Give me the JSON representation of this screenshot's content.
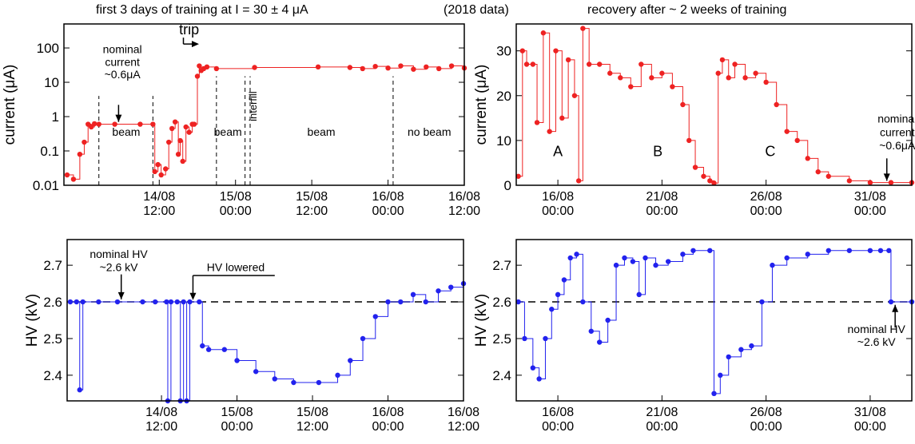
{
  "header": {
    "left_title": "first 3 days of training at I = 30 ± 4 μA",
    "year_note": "(2018 data)",
    "right_title": "recovery after ~ 2 weeks of training"
  },
  "chart_data": [
    {
      "id": "tl",
      "type": "scatter",
      "ylabel": "current  (μA)",
      "yscale": "log",
      "ylim": [
        0.01,
        500
      ],
      "y_ticks": [
        "0.01",
        "0.1",
        "1",
        "10",
        "100"
      ],
      "xlim": [
        0,
        63
      ],
      "x_ticks": [
        {
          "x": 15,
          "l1": "14/08",
          "l2": "12:00"
        },
        {
          "x": 27,
          "l1": "15/08",
          "l2": "00:00"
        },
        {
          "x": 39,
          "l1": "15/08",
          "l2": "12:00"
        },
        {
          "x": 51,
          "l1": "16/08",
          "l2": "00:00"
        },
        {
          "x": 63,
          "l1": "16/08",
          "l2": "12:00"
        }
      ],
      "color": "#ee2222",
      "series": [
        {
          "values": [
            [
              0.5,
              0.02
            ],
            [
              1.5,
              0.015
            ],
            [
              2.5,
              0.08
            ],
            [
              3.2,
              0.18
            ],
            [
              3.8,
              0.6
            ],
            [
              4.3,
              0.5
            ],
            [
              4.8,
              0.62
            ],
            [
              5.5,
              0.6
            ],
            [
              8,
              0.6
            ],
            [
              12,
              0.6
            ],
            [
              14,
              0.6
            ],
            [
              14.3,
              0.025
            ],
            [
              14.8,
              0.04
            ],
            [
              15.3,
              0.02
            ],
            [
              16,
              0.03
            ],
            [
              16.5,
              0.18
            ],
            [
              17,
              0.45
            ],
            [
              17.5,
              0.7
            ],
            [
              18,
              0.08
            ],
            [
              18.3,
              0.2
            ],
            [
              18.7,
              0.05
            ],
            [
              19.2,
              0.5
            ],
            [
              19.7,
              0.35
            ],
            [
              20.2,
              0.6
            ],
            [
              20.5,
              0.6
            ],
            [
              21,
              15
            ],
            [
              21.3,
              30
            ],
            [
              21.6,
              22
            ],
            [
              22,
              25
            ],
            [
              22.5,
              28
            ],
            [
              24,
              25
            ],
            [
              30,
              27
            ],
            [
              40,
              28
            ],
            [
              45,
              27
            ],
            [
              47,
              25
            ],
            [
              49,
              29
            ],
            [
              51,
              26
            ],
            [
              53,
              30
            ],
            [
              55,
              24
            ],
            [
              57,
              28
            ],
            [
              59,
              25
            ],
            [
              61,
              30
            ],
            [
              63,
              26
            ]
          ]
        }
      ],
      "vlines": [
        {
          "x": 5.5,
          "y": [
            0.01,
            4
          ]
        },
        {
          "x": 14,
          "y": [
            0.01,
            4
          ]
        },
        {
          "x": 24,
          "y": [
            0.01,
            15
          ]
        },
        {
          "x": 28.5,
          "y": [
            0.01,
            15
          ]
        },
        {
          "x": 29.3,
          "y": [
            0.01,
            15
          ]
        },
        {
          "x": 51.8,
          "y": [
            0.01,
            15
          ]
        }
      ],
      "annotations": [
        {
          "text": "beam",
          "x": 9.8,
          "y": 0.28
        },
        {
          "text": "beam",
          "x": 25.8,
          "y": 0.28
        },
        {
          "text": "beam",
          "x": 40.5,
          "y": 0.28
        },
        {
          "text": "no beam",
          "x": 57.5,
          "y": 0.28
        },
        {
          "text": "interfill",
          "x": 30.3,
          "y": 2,
          "rotate": true
        },
        {
          "text": "nominal",
          "x": 9.2,
          "y": 70
        },
        {
          "text": "current",
          "x": 9.2,
          "y": 30
        },
        {
          "text": "~0.6μA",
          "x": 9.2,
          "y": 13
        },
        {
          "text": "trip",
          "x": 19.7,
          "y": 250
        }
      ],
      "arrows": [
        {
          "x": 8.6,
          "from": 2.2,
          "to": 0.7
        },
        {
          "trip": true
        }
      ]
    },
    {
      "id": "tr",
      "type": "scatter",
      "ylabel": "current  (μA)",
      "ylim": [
        0,
        36
      ],
      "y_ticks": [
        0,
        10,
        20,
        30
      ],
      "xlim": [
        14,
        33
      ],
      "x_ticks": [
        {
          "x": 16,
          "l1": "16/08",
          "l2": "00:00"
        },
        {
          "x": 21,
          "l1": "21/08",
          "l2": "00:00"
        },
        {
          "x": 26,
          "l1": "26/08",
          "l2": "00:00"
        },
        {
          "x": 31,
          "l1": "31/08",
          "l2": "00:00"
        }
      ],
      "color": "#ee2222",
      "series": [
        {
          "values": [
            [
              14.1,
              2
            ],
            [
              14.3,
              30
            ],
            [
              14.5,
              27
            ],
            [
              14.8,
              27
            ],
            [
              15,
              14
            ],
            [
              15.3,
              34
            ],
            [
              15.6,
              12
            ],
            [
              15.9,
              30
            ],
            [
              16.2,
              15
            ],
            [
              16.5,
              28
            ],
            [
              16.8,
              20
            ],
            [
              17,
              1
            ],
            [
              17.2,
              35
            ],
            [
              17.5,
              27
            ],
            [
              18,
              27
            ],
            [
              18.5,
              25
            ],
            [
              19,
              24
            ],
            [
              19.5,
              22
            ],
            [
              20,
              27
            ],
            [
              20.5,
              24
            ],
            [
              21,
              25
            ],
            [
              21.5,
              22
            ],
            [
              22,
              18
            ],
            [
              22.3,
              10
            ],
            [
              22.6,
              4
            ],
            [
              23,
              2
            ],
            [
              23.3,
              1
            ],
            [
              23.5,
              0.5
            ],
            [
              23.7,
              25
            ],
            [
              23.9,
              28
            ],
            [
              24.2,
              24
            ],
            [
              24.5,
              27
            ],
            [
              25,
              24
            ],
            [
              25.5,
              25
            ],
            [
              26,
              23
            ],
            [
              26.5,
              18
            ],
            [
              27,
              12
            ],
            [
              27.5,
              10
            ],
            [
              28,
              6
            ],
            [
              28.5,
              3
            ],
            [
              29,
              2
            ],
            [
              30,
              1
            ],
            [
              31,
              0.6
            ],
            [
              32,
              0.6
            ],
            [
              33,
              0.6
            ]
          ]
        }
      ],
      "annotations": [
        {
          "text": "A",
          "x": 16,
          "y": 6.5
        },
        {
          "text": "B",
          "x": 20.8,
          "y": 6.5
        },
        {
          "text": "C",
          "x": 26.2,
          "y": 6.5
        },
        {
          "text": "nominal",
          "x": 32.3,
          "y": 14
        },
        {
          "text": "current",
          "x": 32.3,
          "y": 11
        },
        {
          "text": "~0.6μA",
          "x": 32.3,
          "y": 8
        }
      ],
      "arrows": [
        {
          "x": 31.8,
          "from": 6,
          "to": 1
        }
      ]
    },
    {
      "id": "bl",
      "type": "scatter",
      "ylabel": "HV  (kV)",
      "ylim": [
        2.33,
        2.77
      ],
      "y_ticks": [
        2.4,
        2.5,
        2.6,
        2.7
      ],
      "xlim": [
        0,
        63
      ],
      "x_ticks": [
        {
          "x": 15,
          "l1": "14/08",
          "l2": "12:00"
        },
        {
          "x": 27,
          "l1": "15/08",
          "l2": "00:00"
        },
        {
          "x": 39,
          "l1": "15/08",
          "l2": "12:00"
        },
        {
          "x": 51,
          "l1": "16/08",
          "l2": "00:00"
        },
        {
          "x": 63,
          "l1": "16/08",
          "l2": "12:00"
        }
      ],
      "color": "#2222ee",
      "series": [
        {
          "values": [
            [
              0.5,
              2.6
            ],
            [
              1.5,
              2.6
            ],
            [
              2,
              2.36
            ],
            [
              2.5,
              2.6
            ],
            [
              5,
              2.6
            ],
            [
              8,
              2.6
            ],
            [
              12,
              2.6
            ],
            [
              14,
              2.6
            ],
            [
              15.8,
              2.6
            ],
            [
              16,
              2.33
            ],
            [
              16.5,
              2.6
            ],
            [
              17.5,
              2.6
            ],
            [
              18,
              2.33
            ],
            [
              18.5,
              2.6
            ],
            [
              19,
              2.33
            ],
            [
              19.5,
              2.6
            ],
            [
              21,
              2.6
            ],
            [
              21.5,
              2.48
            ],
            [
              22.5,
              2.47
            ],
            [
              25,
              2.47
            ],
            [
              27,
              2.44
            ],
            [
              30,
              2.41
            ],
            [
              33,
              2.39
            ],
            [
              36,
              2.38
            ],
            [
              40,
              2.38
            ],
            [
              43,
              2.4
            ],
            [
              45,
              2.44
            ],
            [
              47,
              2.5
            ],
            [
              49,
              2.56
            ],
            [
              51,
              2.6
            ],
            [
              53,
              2.6
            ],
            [
              55,
              2.62
            ],
            [
              57,
              2.6
            ],
            [
              59,
              2.63
            ],
            [
              61,
              2.64
            ],
            [
              63,
              2.65
            ]
          ]
        }
      ],
      "hline": 2.6,
      "annotations": [
        {
          "text": "nominal HV",
          "x": 8.2,
          "y": 2.72
        },
        {
          "text": "~2.6 kV",
          "x": 8.2,
          "y": 2.684
        },
        {
          "text": "HV lowered",
          "x": 26.8,
          "y": 2.684
        }
      ],
      "arrows": [
        {
          "x": 8.6,
          "from": 2.675,
          "to": 2.607
        },
        {
          "hv": true
        }
      ]
    },
    {
      "id": "br",
      "type": "scatter",
      "ylabel": "HV  (kV)",
      "ylim": [
        2.33,
        2.77
      ],
      "y_ticks": [
        2.4,
        2.5,
        2.6,
        2.7
      ],
      "xlim": [
        14,
        33
      ],
      "x_ticks": [
        {
          "x": 16,
          "l1": "16/08",
          "l2": "00:00"
        },
        {
          "x": 21,
          "l1": "21/08",
          "l2": "00:00"
        },
        {
          "x": 26,
          "l1": "26/08",
          "l2": "00:00"
        },
        {
          "x": 31,
          "l1": "31/08",
          "l2": "00:00"
        }
      ],
      "color": "#2222ee",
      "series": [
        {
          "values": [
            [
              14.1,
              2.6
            ],
            [
              14.4,
              2.5
            ],
            [
              14.8,
              2.42
            ],
            [
              15.1,
              2.39
            ],
            [
              15.4,
              2.5
            ],
            [
              15.7,
              2.58
            ],
            [
              16,
              2.62
            ],
            [
              16.3,
              2.66
            ],
            [
              16.6,
              2.72
            ],
            [
              16.9,
              2.73
            ],
            [
              17.2,
              2.6
            ],
            [
              17.6,
              2.52
            ],
            [
              18,
              2.49
            ],
            [
              18.4,
              2.55
            ],
            [
              18.8,
              2.7
            ],
            [
              19.2,
              2.72
            ],
            [
              19.6,
              2.71
            ],
            [
              19.9,
              2.62
            ],
            [
              20.2,
              2.72
            ],
            [
              20.7,
              2.7
            ],
            [
              21.3,
              2.71
            ],
            [
              22,
              2.73
            ],
            [
              22.5,
              2.74
            ],
            [
              23.3,
              2.74
            ],
            [
              23.5,
              2.35
            ],
            [
              23.8,
              2.4
            ],
            [
              24.2,
              2.45
            ],
            [
              24.8,
              2.47
            ],
            [
              25.3,
              2.48
            ],
            [
              25.8,
              2.6
            ],
            [
              26.3,
              2.7
            ],
            [
              27,
              2.72
            ],
            [
              28,
              2.73
            ],
            [
              29,
              2.74
            ],
            [
              30,
              2.74
            ],
            [
              31,
              2.74
            ],
            [
              31.5,
              2.74
            ],
            [
              31.9,
              2.74
            ],
            [
              32,
              2.6
            ],
            [
              33,
              2.6
            ]
          ]
        }
      ],
      "hline": 2.6,
      "annotations": [
        {
          "text": "nominal HV",
          "x": 31.3,
          "y": 2.515
        },
        {
          "text": "~2.6 kV",
          "x": 31.3,
          "y": 2.48
        }
      ],
      "arrows": [
        {
          "x": 32.2,
          "from": 2.53,
          "to": 2.592
        }
      ]
    }
  ]
}
